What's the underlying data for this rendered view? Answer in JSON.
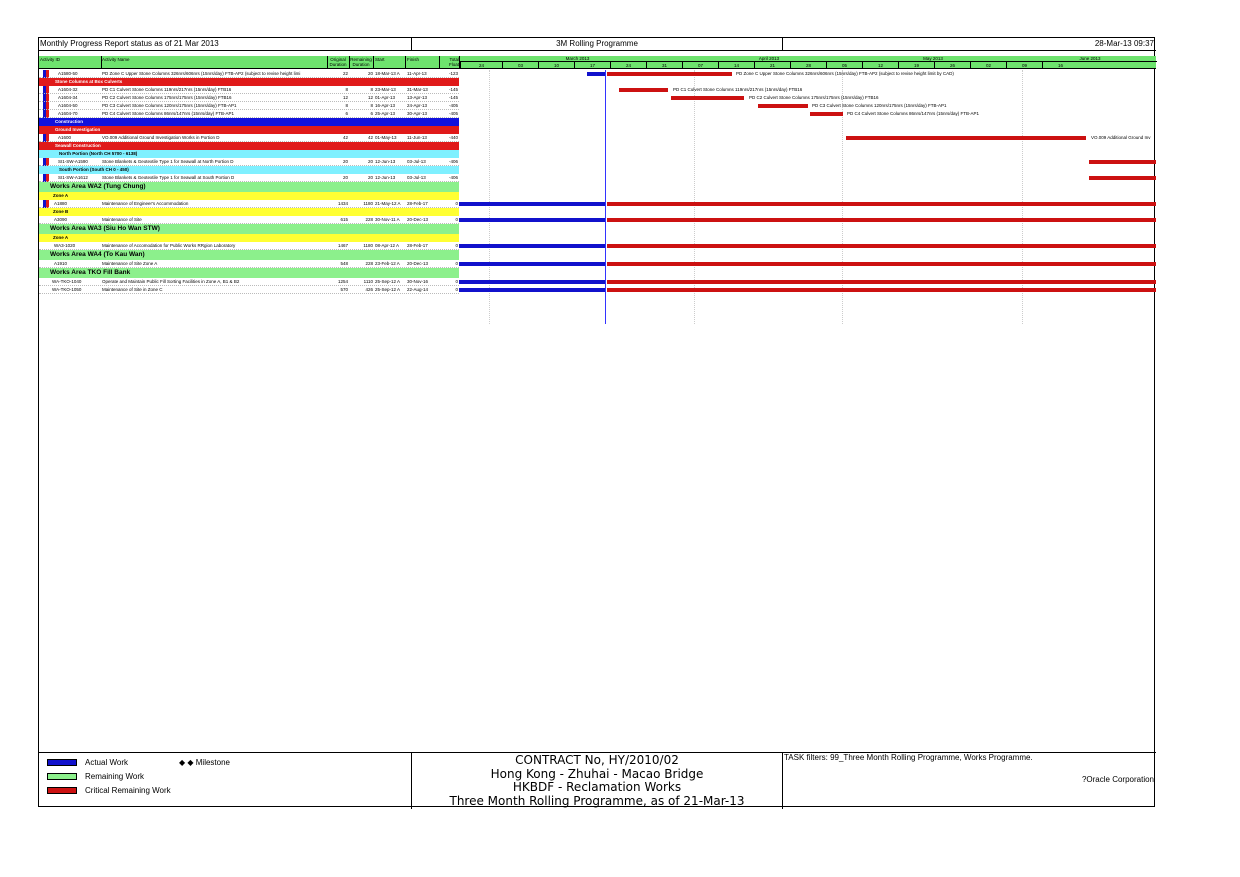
{
  "header": {
    "left": "Monthly Progress Report status as of 21 Mar 2013",
    "center": "3M Rolling Programme",
    "right": "28-Mar-13 09:37"
  },
  "columns": {
    "id": "Activity ID",
    "name": "Activity Name",
    "orig": "Original Duration",
    "rem": "Remaining Duration",
    "start": "Start",
    "finish": "Finish",
    "float": "Total Float"
  },
  "timeline": {
    "months": [
      "March 2013",
      "April 2013",
      "May 2013",
      "June 2013"
    ],
    "weeks": [
      "24",
      "03",
      "10",
      "17",
      "24",
      "31",
      "07",
      "14",
      "21",
      "28",
      "05",
      "12",
      "19",
      "26",
      "02",
      "09",
      "16"
    ]
  },
  "bands": {
    "stone_columns": "Stone Columns at Box Culverts",
    "construction": "Construction",
    "ground_investigation": "Ground Investigation",
    "seawall_construction": "Seawall Construction",
    "north_portion": "North Portion (North CH 5700 - 6138)",
    "south_portion": "South Portion (South CH 0 - 450)",
    "wa2": "Works Area WA2 (Tung Chung)",
    "zone_a1": "Zone A",
    "zone_b": "Zone B",
    "wa3": "Works Area WA3 (Siu Ho Wan STW)",
    "zone_a2": "Zone A",
    "wa4": "Works Area WA4 (To Kau Wan)",
    "tko": "Works Area TKO Fill Bank"
  },
  "activities": {
    "a1": {
      "id": "A1580-50",
      "name": "PD Zone C Upper Stone Columns 326nrs/606nrs (15nrs/day) FTB-AP2 (subject to revise height limi",
      "orig": "22",
      "rem": "20",
      "start": "18-Mar-13 A",
      "finish": "11-Apr-13",
      "float": "-123",
      "label": "PD Zone C Upper Stone Columns 326nrs/606nrs (15nrs/day) FTB-AP2 (subject to revise height limit by CAD)"
    },
    "a2": {
      "id": "A1604-32",
      "name": "PD C1 Culvert Stone Columns 119nrs/217nrs (15nrs/day) FTB16",
      "orig": "8",
      "rem": "8",
      "start": "23-Mar-13",
      "finish": "31-Mar-13",
      "float": "-145",
      "label": "PD C1 Culvert Stone Columns 119nrs/217nrs (15nrs/day) FTB16"
    },
    "a3": {
      "id": "A1604-34",
      "name": "PD C2 Culvert Stone Columns 175nrs/175nrs (15nrs/day) FTB16",
      "orig": "12",
      "rem": "12",
      "start": "01-Apr-13",
      "finish": "13-Apr-13",
      "float": "-145",
      "label": "PD C2 Culvert Stone Columns 175nrs/175nrs (15nrs/day) FTB16"
    },
    "a4": {
      "id": "A1604-50",
      "name": "PD C3 Culvert Stone Columns 120nrs/175nrs (15nrs/day) FTB-AP1",
      "orig": "8",
      "rem": "8",
      "start": "16-Apr-13",
      "finish": "24-Apr-13",
      "float": "-405",
      "label": "PD C3 Culvert Stone Columns 120nrs/175nrs (15nrs/day) FTB-AP1"
    },
    "a5": {
      "id": "A1604-70",
      "name": "PD C4 Culvert Stone Columns 86nrs/147nrs (15nrs/day) FTB-AP1",
      "orig": "6",
      "rem": "6",
      "start": "25-Apr-13",
      "finish": "30-Apr-13",
      "float": "-405",
      "label": "PD C4 Culvert Stone Columns 86nrs/147nrs (15nrs/day) FTB-AP1"
    },
    "a6": {
      "id": "A1600",
      "name": "VO.009 Additional Ground Investigation Works in Portion D",
      "orig": "42",
      "rem": "42",
      "start": "01-May-13",
      "finish": "11-Jun-13",
      "float": "-440",
      "label": "VO.009 Additional Ground Inv"
    },
    "a7": {
      "id": "SI1-SW-A1590",
      "name": "Stone Blankets & Geotextile Type 1 for Seawall at North Portion D",
      "orig": "20",
      "rem": "20",
      "start": "12-Jun-13",
      "finish": "03-Jul-13",
      "float": "-406"
    },
    "a8": {
      "id": "SI1-SW-A1612",
      "name": "Stone Blankets & Geotextile Type 1 for Seawall at South Portion D",
      "orig": "20",
      "rem": "20",
      "start": "12-Jun-13",
      "finish": "03-Jul-13",
      "float": "-406"
    },
    "a9": {
      "id": "A1880",
      "name": "Maintenance of Engineer's Accommodation",
      "orig": "1434",
      "rem": "1180",
      "start": "21-May-12 A",
      "finish": "28-Feb-17",
      "float": "0"
    },
    "a10": {
      "id": "A3090",
      "name": "Maintenance of Site",
      "orig": "615",
      "rem": "228",
      "start": "30-Nov-11 A",
      "finish": "20-Dec-13",
      "float": "0"
    },
    "a11": {
      "id": "WA3-1020",
      "name": "Maintenance of Accomodation for Public Works RRgion Laboratory",
      "orig": "1467",
      "rem": "1180",
      "start": "08-Apr-12 A",
      "finish": "28-Feb-17",
      "float": "0"
    },
    "a12": {
      "id": "A1910",
      "name": "Maintenance of Site Zone A",
      "orig": "548",
      "rem": "228",
      "start": "23-Feb-12 A",
      "finish": "20-Dec-13",
      "float": "0"
    },
    "a13": {
      "id": "WA-TKO-1040",
      "name": "Operate and Maintain Public Fill Sorting Facilities in Zone A, B1 & B2",
      "orig": "1254",
      "rem": "1110",
      "start": "25-Sep-12 A",
      "finish": "30-Nov-16",
      "float": "0"
    },
    "a14": {
      "id": "WA-TKO-1050",
      "name": "Maintenance of Site in Zone C",
      "orig": "570",
      "rem": "426",
      "start": "25-Sep-12 A",
      "finish": "22-Aug-14",
      "float": "0"
    }
  },
  "legend": {
    "actual": "Actual Work",
    "remaining": "Remaining Work",
    "critical": "Critical Remaining Work",
    "milestone": "◆   ◆ Milestone"
  },
  "footer": {
    "line1": "CONTRACT No, HY/2010/02",
    "line2": "Hong Kong - Zhuhai - Macao Bridge",
    "line3": "HKBDF - Reclamation Works",
    "line4": "Three Month Rolling Programme, as of 21-Mar-13",
    "filters": "TASK filters: 99_Three Month Rolling Programme, Works Programme.",
    "copyright": "?Oracle Corporation"
  },
  "colors": {
    "actual": "#1111cc",
    "remaining": "#8cf08c",
    "critical": "#cc1111"
  }
}
